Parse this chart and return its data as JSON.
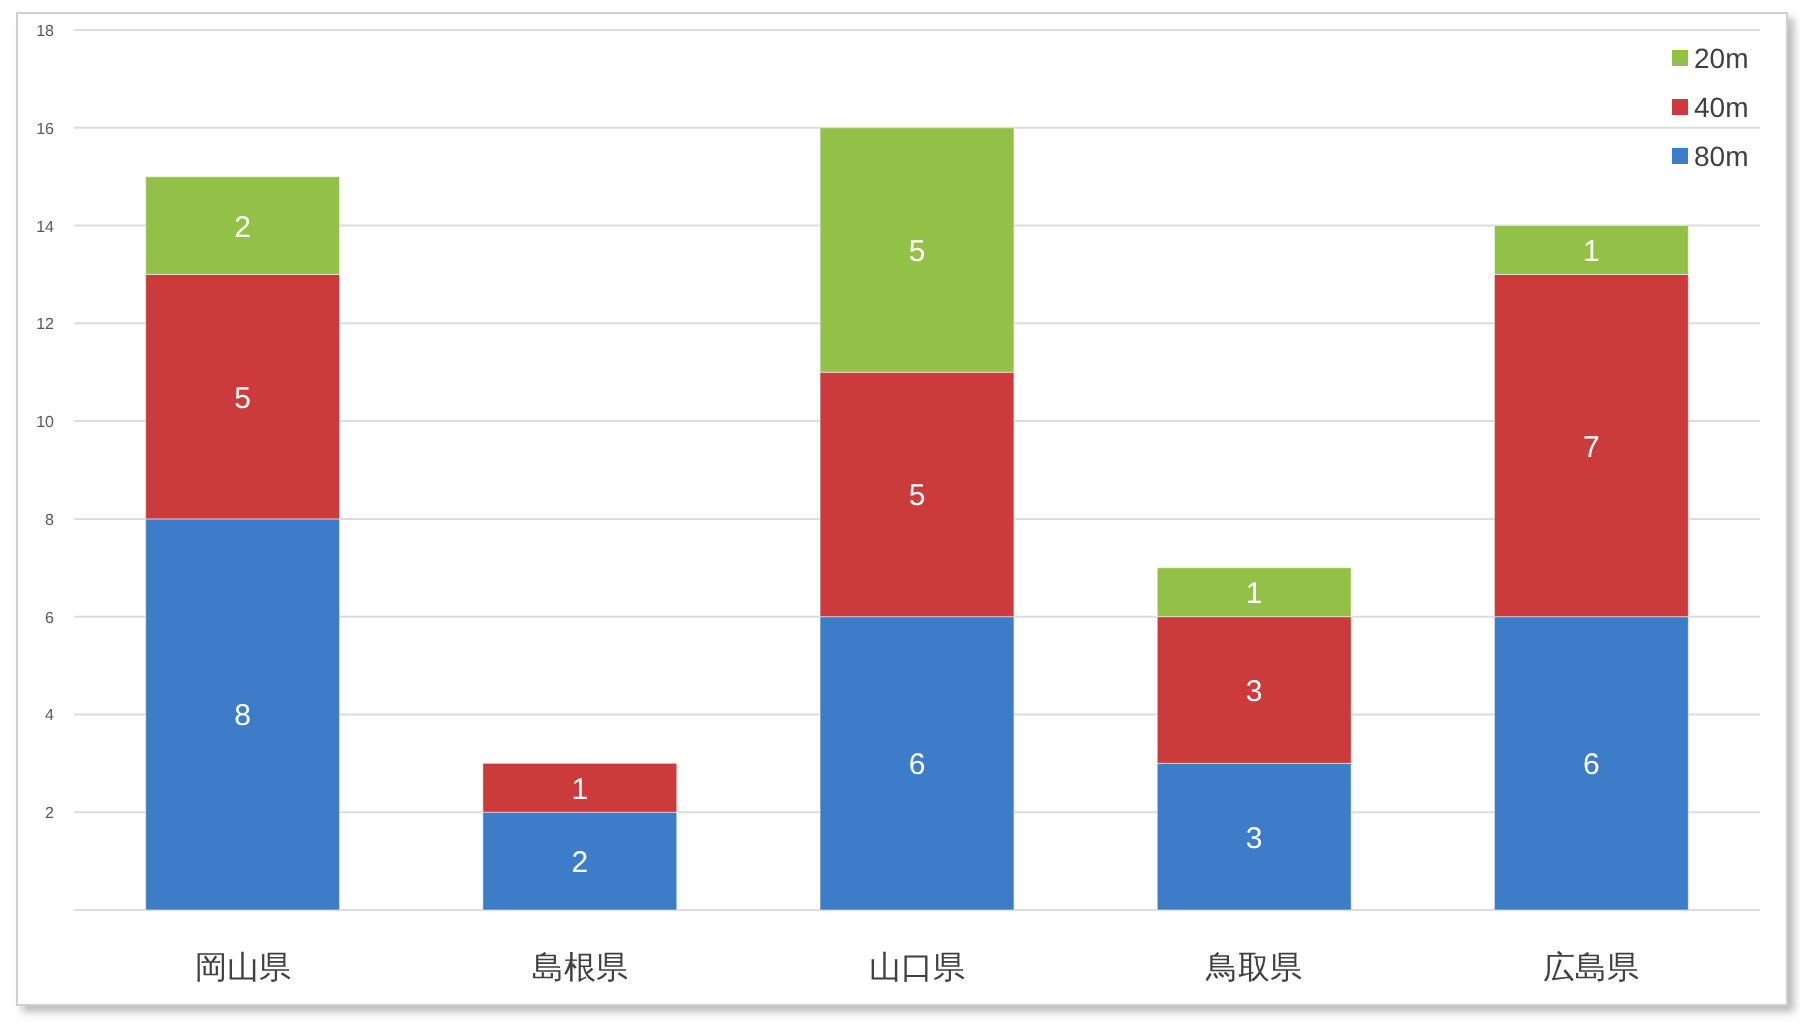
{
  "chart_data": {
    "type": "bar",
    "stacked": true,
    "categories": [
      "岡山県",
      "島根県",
      "山口県",
      "鳥取県",
      "広島県"
    ],
    "series": [
      {
        "name": "80m",
        "color": "#3d7cc9",
        "values": [
          8,
          2,
          6,
          3,
          6
        ]
      },
      {
        "name": "40m",
        "color": "#cc3b3b",
        "values": [
          5,
          1,
          5,
          3,
          7
        ]
      },
      {
        "name": "20m",
        "color": "#93c047",
        "values": [
          2,
          null,
          5,
          1,
          1
        ]
      }
    ],
    "ylim": [
      0,
      18
    ],
    "yticks": [
      {
        "value": 0,
        "label": null
      },
      2,
      4,
      6,
      8,
      10,
      12,
      14,
      16,
      18
    ],
    "grid": "y",
    "legend": "top right",
    "data_labels": true
  }
}
